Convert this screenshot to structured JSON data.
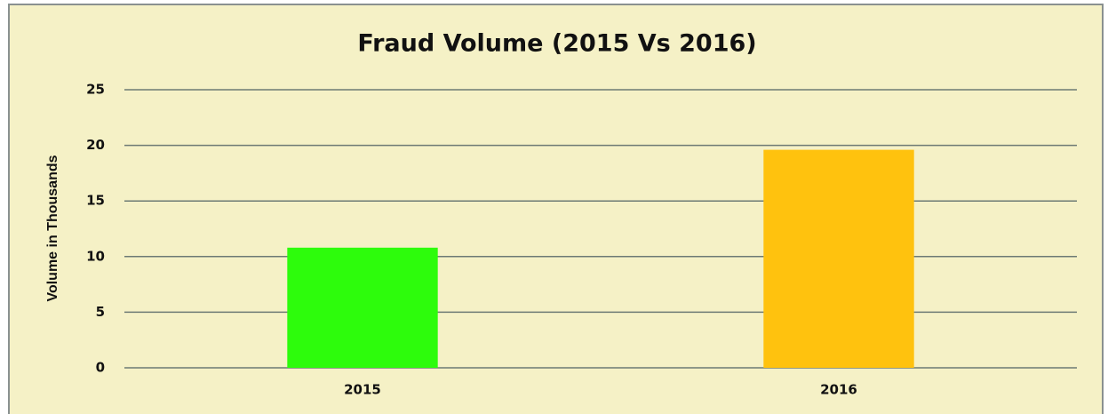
{
  "chart_data": {
    "type": "bar",
    "title": "Fraud Volume (2015 Vs 2016)",
    "y_label": "Volume in Thousands",
    "categories": [
      "2015",
      "2016"
    ],
    "values": [
      10.8,
      19.6
    ],
    "colors": [
      "#2dfc0c",
      "#ffc20e"
    ],
    "ylim": [
      0,
      25
    ],
    "yticks": [
      0,
      5,
      10,
      15,
      20,
      25
    ],
    "grid": true
  }
}
